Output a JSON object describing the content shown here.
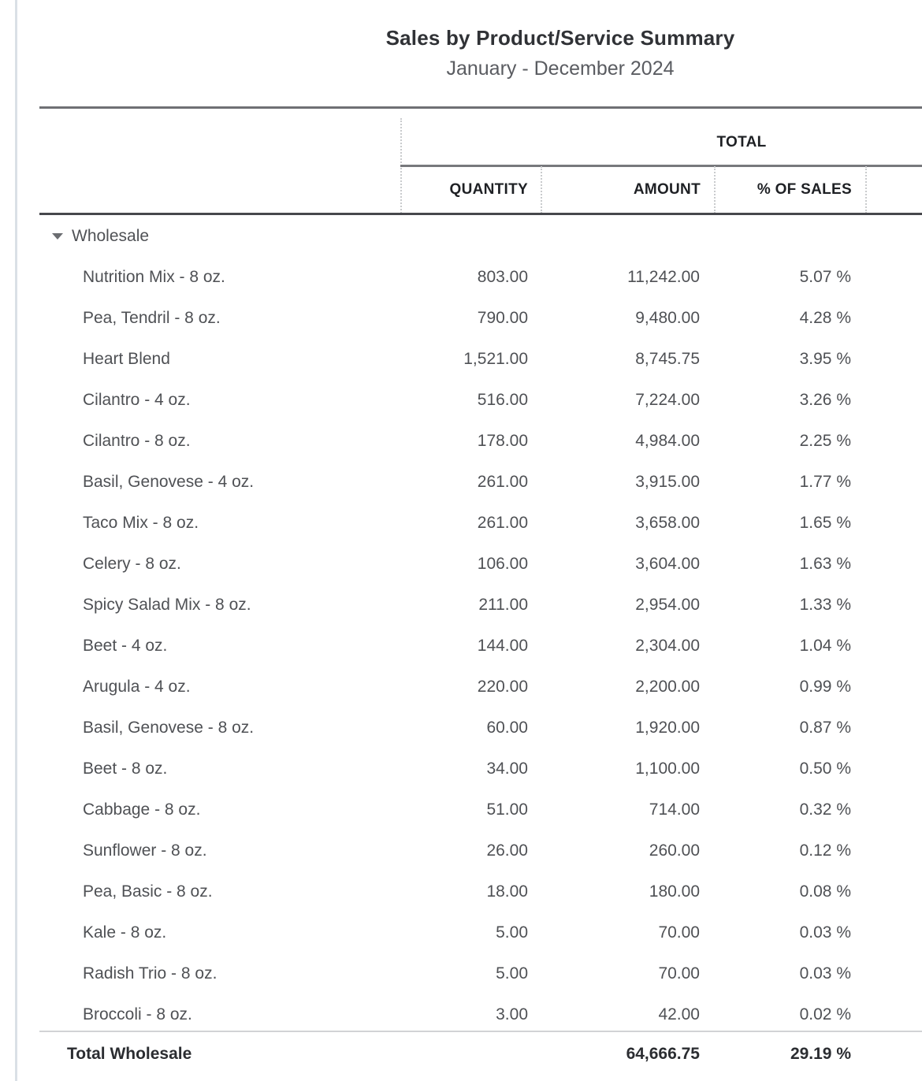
{
  "report": {
    "title": "Sales by Product/Service Summary",
    "subtitle": "January - December 2024"
  },
  "table": {
    "total_header_label": "TOTAL",
    "column_headers": {
      "quantity": "QUANTITY",
      "amount": "AMOUNT",
      "percent_of_sales": "% OF SALES"
    },
    "group": {
      "label": "Wholesale",
      "collapse_icon": "triangle-down-icon"
    },
    "rows": [
      {
        "name": "Nutrition Mix - 8 oz.",
        "quantity": "803.00",
        "amount": "11,242.00",
        "percent": "5.07 %"
      },
      {
        "name": "Pea, Tendril - 8 oz.",
        "quantity": "790.00",
        "amount": "9,480.00",
        "percent": "4.28 %"
      },
      {
        "name": "Heart Blend",
        "quantity": "1,521.00",
        "amount": "8,745.75",
        "percent": "3.95 %"
      },
      {
        "name": "Cilantro - 4 oz.",
        "quantity": "516.00",
        "amount": "7,224.00",
        "percent": "3.26 %"
      },
      {
        "name": "Cilantro - 8 oz.",
        "quantity": "178.00",
        "amount": "4,984.00",
        "percent": "2.25 %"
      },
      {
        "name": "Basil, Genovese - 4 oz.",
        "quantity": "261.00",
        "amount": "3,915.00",
        "percent": "1.77 %"
      },
      {
        "name": "Taco Mix - 8 oz.",
        "quantity": "261.00",
        "amount": "3,658.00",
        "percent": "1.65 %"
      },
      {
        "name": "Celery - 8 oz.",
        "quantity": "106.00",
        "amount": "3,604.00",
        "percent": "1.63 %"
      },
      {
        "name": "Spicy Salad Mix - 8 oz.",
        "quantity": "211.00",
        "amount": "2,954.00",
        "percent": "1.33 %"
      },
      {
        "name": "Beet - 4 oz.",
        "quantity": "144.00",
        "amount": "2,304.00",
        "percent": "1.04 %"
      },
      {
        "name": "Arugula - 4 oz.",
        "quantity": "220.00",
        "amount": "2,200.00",
        "percent": "0.99 %"
      },
      {
        "name": "Basil, Genovese - 8 oz.",
        "quantity": "60.00",
        "amount": "1,920.00",
        "percent": "0.87 %"
      },
      {
        "name": "Beet - 8 oz.",
        "quantity": "34.00",
        "amount": "1,100.00",
        "percent": "0.50 %"
      },
      {
        "name": "Cabbage - 8 oz.",
        "quantity": "51.00",
        "amount": "714.00",
        "percent": "0.32 %"
      },
      {
        "name": "Sunflower - 8 oz.",
        "quantity": "26.00",
        "amount": "260.00",
        "percent": "0.12 %"
      },
      {
        "name": "Pea, Basic - 8 oz.",
        "quantity": "18.00",
        "amount": "180.00",
        "percent": "0.08 %"
      },
      {
        "name": "Kale - 8 oz.",
        "quantity": "5.00",
        "amount": "70.00",
        "percent": "0.03 %"
      },
      {
        "name": "Radish Trio - 8 oz.",
        "quantity": "5.00",
        "amount": "70.00",
        "percent": "0.03 %"
      },
      {
        "name": "Broccoli - 8 oz.",
        "quantity": "3.00",
        "amount": "42.00",
        "percent": "0.02 %"
      }
    ],
    "total_row": {
      "label": "Total Wholesale",
      "quantity": "",
      "amount": "64,666.75",
      "percent": "29.19 %"
    }
  },
  "colors": {
    "rule_top": "#6f7074",
    "rule_header_bottom": "#46474c",
    "rule_under_total": "#77787c",
    "rule_above_total": "#d2d3d5",
    "dotted_divider": "#c9cbcd",
    "left_edge_line": "#dae0e6",
    "text_body": "#4f5155",
    "text_strong": "#1e2024"
  }
}
